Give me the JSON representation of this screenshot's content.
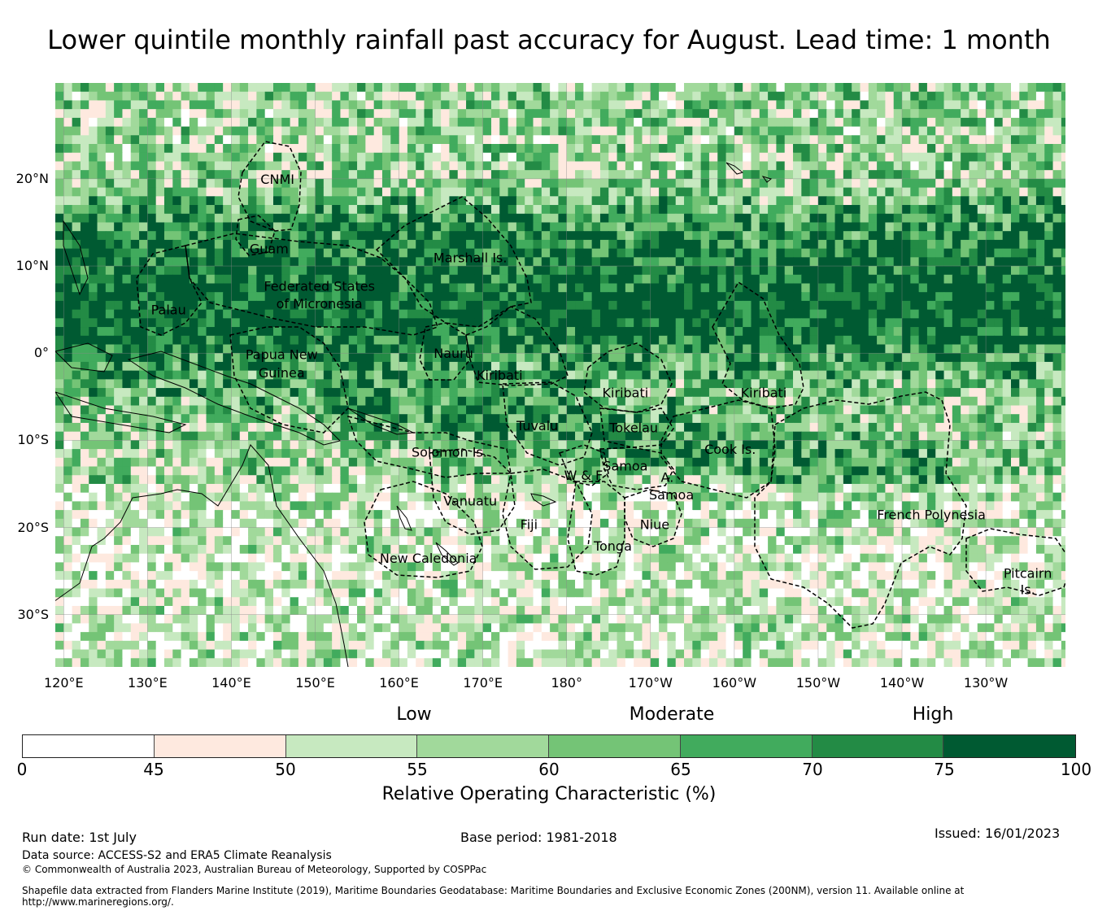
{
  "title": "Lower quintile monthly rainfall past accuracy for August. Lead time: 1 month",
  "map": {
    "lat_labels": [
      "20°N",
      "10°N",
      "0°",
      "10°S",
      "20°S",
      "30°S"
    ],
    "lat_values": [
      20,
      10,
      0,
      -10,
      -20,
      -30
    ],
    "lon_labels": [
      "120°E",
      "130°E",
      "140°E",
      "150°E",
      "160°E",
      "170°E",
      "180°",
      "170°W",
      "160°W",
      "150°W",
      "140°W",
      "130°W"
    ],
    "lon_values": [
      120,
      130,
      140,
      150,
      160,
      170,
      180,
      190,
      200,
      210,
      220,
      230
    ],
    "extent": {
      "lon_min": 119,
      "lon_max": 239.5,
      "lat_min": -36,
      "lat_max": 31
    },
    "regions": [
      {
        "name": "CNMI",
        "lon": 145.5,
        "lat": 20
      },
      {
        "name": "Guam",
        "lon": 144.5,
        "lat": 12
      },
      {
        "name": "Marshall Is.",
        "lon": 168.5,
        "lat": 11
      },
      {
        "name": "Federated States",
        "lon": 150.5,
        "lat": 7.7
      },
      {
        "name": "of Micronesia",
        "lon": 150.5,
        "lat": 5.7
      },
      {
        "name": "Palau",
        "lon": 132.5,
        "lat": 5
      },
      {
        "name": "Papua New",
        "lon": 146,
        "lat": -0.1
      },
      {
        "name": "Guinea",
        "lon": 146,
        "lat": -2.2
      },
      {
        "name": "Nauru",
        "lon": 166.5,
        "lat": 0
      },
      {
        "name": "Kiribati",
        "lon": 172,
        "lat": -2.5
      },
      {
        "name": "Kiribati",
        "lon": 187,
        "lat": -4.5
      },
      {
        "name": "Kiribati",
        "lon": 203.5,
        "lat": -4.5
      },
      {
        "name": "Tuvalu",
        "lon": 176.5,
        "lat": -8.3
      },
      {
        "name": "Tokelau",
        "lon": 188,
        "lat": -8.5
      },
      {
        "name": "Cook Is.",
        "lon": 199.5,
        "lat": -11
      },
      {
        "name": "Solomon Is.",
        "lon": 166,
        "lat": -11.3
      },
      {
        "name": "Samoa",
        "lon": 187,
        "lat": -12.9
      },
      {
        "name": "W & F",
        "lon": 182,
        "lat": -14
      },
      {
        "name": "A.",
        "lon": 192,
        "lat": -14.2
      },
      {
        "name": "Samoa",
        "lon": 192.5,
        "lat": -16.2
      },
      {
        "name": "Vanuatu",
        "lon": 168.5,
        "lat": -16.9
      },
      {
        "name": "French Polynesia",
        "lon": 223.5,
        "lat": -18.5
      },
      {
        "name": "Fiji",
        "lon": 175.5,
        "lat": -19.6
      },
      {
        "name": "Niue",
        "lon": 190.5,
        "lat": -19.6
      },
      {
        "name": "Tonga",
        "lon": 185.5,
        "lat": -22.1
      },
      {
        "name": "New Caledonia",
        "lon": 163.5,
        "lat": -23.5
      },
      {
        "name": "Pitcairn",
        "lon": 235,
        "lat": -25.2
      },
      {
        "name": "Is.",
        "lon": 235,
        "lat": -27.1
      }
    ]
  },
  "legend": {
    "categories": [
      "Low",
      "Moderate",
      "High"
    ],
    "bins": [
      {
        "from": 0,
        "to": 45,
        "color": "#ffffff"
      },
      {
        "from": 45,
        "to": 50,
        "color": "#fee9df"
      },
      {
        "from": 50,
        "to": 55,
        "color": "#c7e9c0"
      },
      {
        "from": 55,
        "to": 60,
        "color": "#a1d99b"
      },
      {
        "from": 60,
        "to": 65,
        "color": "#74c476"
      },
      {
        "from": 65,
        "to": 70,
        "color": "#41ab5d"
      },
      {
        "from": 70,
        "to": 75,
        "color": "#238b45"
      },
      {
        "from": 75,
        "to": 100,
        "color": "#005a32"
      }
    ],
    "ticks": [
      "0",
      "45",
      "50",
      "55",
      "60",
      "65",
      "70",
      "75",
      "100"
    ],
    "title": "Relative Operating Characteristic (%)"
  },
  "footer": {
    "run_date": "Run date: 1st July",
    "base_period": "Base period: 1981-2018",
    "issued": "Issued: 16/01/2023",
    "data_source": "Data source: ACCESS-S2 and ERA5 Climate Reanalysis",
    "copyright": "© Commonwealth of Australia 2023, Australian Bureau of Meteorology, Supported by COSPPac",
    "shapefile_1": "Shapefile data extracted from Flanders Marine Institute (2019), Maritime Boundaries Geodatabase: Maritime Boundaries and Exclusive Economic Zones (200NM), version 11. Available online at",
    "shapefile_2": "http://www.marineregions.org/."
  }
}
